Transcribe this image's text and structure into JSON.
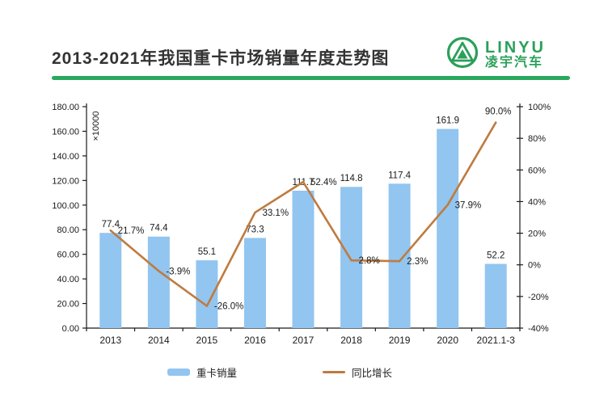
{
  "header": {
    "title": "2013-2021年我国重卡市场销量年度走势图",
    "underline_color": "#2aa85e"
  },
  "logo": {
    "brand_en": "LINYU",
    "brand_cn": "凌宇汽车",
    "color": "#2ba05a"
  },
  "chart_data": {
    "type": "bar",
    "subtype": "bar+line combo",
    "categories": [
      "2013",
      "2014",
      "2015",
      "2016",
      "2017",
      "2018",
      "2019",
      "2020",
      "2021.1-3"
    ],
    "series": [
      {
        "name": "重卡销量",
        "type": "bar",
        "axis": "left",
        "color": "#92c5f0",
        "values": [
          77.4,
          74.4,
          55.1,
          73.3,
          111.7,
          114.8,
          117.4,
          161.9,
          52.2
        ],
        "labels": [
          "77.4",
          "74.4",
          "55.1",
          "73.3",
          "111.7",
          "114.8",
          "117.4",
          "161.9",
          "52.2"
        ]
      },
      {
        "name": "同比增长",
        "type": "line",
        "axis": "right",
        "color": "#bf7b3f",
        "values": [
          21.7,
          -3.9,
          -26.0,
          33.1,
          52.4,
          2.8,
          2.3,
          37.9,
          90.0
        ],
        "labels": [
          "21.7%",
          "-3.9%",
          "-26.0%",
          "33.1%",
          "52.4%",
          "2.8%",
          "2.3%",
          "37.9%",
          "90.0%"
        ]
      }
    ],
    "left_axis": {
      "min": 0,
      "max": 180,
      "step": 20,
      "tick_labels": [
        "0.00",
        "20.00",
        "40.00",
        "60.00",
        "80.00",
        "100.00",
        "120.00",
        "140.00",
        "160.00",
        "180.00"
      ],
      "unit_label": "×10000"
    },
    "right_axis": {
      "min": -40,
      "max": 100,
      "step": 20,
      "tick_labels": [
        "-40%",
        "-20%",
        "0%",
        "20%",
        "40%",
        "60%",
        "80%",
        "100%"
      ]
    },
    "grid": false,
    "legend_position": "bottom",
    "legend": [
      {
        "label": "重卡销量",
        "marker": "bar"
      },
      {
        "label": "同比增长",
        "marker": "line"
      }
    ]
  }
}
